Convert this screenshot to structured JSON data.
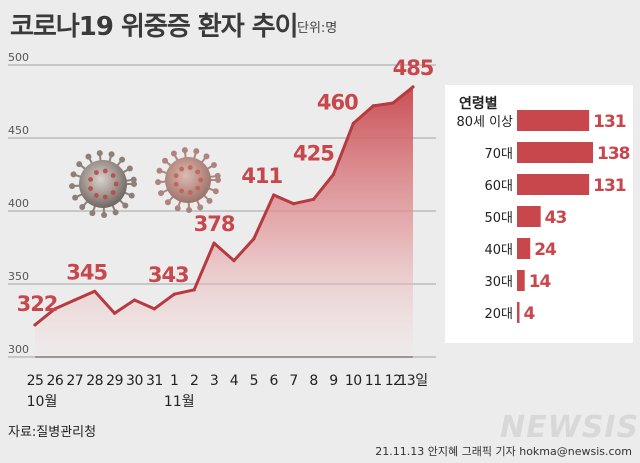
{
  "title": "코로나19 위중증 환자 추이",
  "unit": "단위:명",
  "source": "자료:질병관리청",
  "credit": "21.11.13 안지혜 그래픽 기자 hokma@newsis.com",
  "logo": "NEWSIS",
  "colors": {
    "accent": "#c8474d",
    "accent_dark": "#b63a40",
    "background": "#ececec",
    "fill_top": "#c8474d"
  },
  "chart_data": [
    {
      "type": "area",
      "title": "코로나19 위중증 환자 추이",
      "unit": "단위:명",
      "ylim": [
        300,
        500
      ],
      "yticks": [
        300,
        350,
        400,
        450,
        500
      ],
      "grid": true,
      "x": [
        "25",
        "26",
        "27",
        "28",
        "29",
        "30",
        "31",
        "1",
        "2",
        "3",
        "4",
        "5",
        "6",
        "7",
        "8",
        "9",
        "10",
        "11",
        "12",
        "13"
      ],
      "x_last_suffix": "일",
      "month_labels": [
        {
          "label": "10월",
          "at": "25"
        },
        {
          "label": "11월",
          "at": "1"
        }
      ],
      "values": [
        322,
        333,
        339,
        345,
        330,
        339,
        333,
        343,
        346,
        378,
        366,
        381,
        411,
        405,
        408,
        425,
        460,
        472,
        474,
        485
      ],
      "data_labels": [
        {
          "x": "25",
          "value": 322
        },
        {
          "x": "28",
          "value": 345
        },
        {
          "x": "1",
          "value": 343
        },
        {
          "x": "3",
          "value": 378
        },
        {
          "x": "6",
          "value": 411
        },
        {
          "x": "9",
          "value": 425
        },
        {
          "x": "10",
          "value": 460
        },
        {
          "x": "13",
          "value": 485
        }
      ]
    },
    {
      "type": "bar",
      "orientation": "horizontal",
      "title": "연령별",
      "categories": [
        "80세 이상",
        "70대",
        "60대",
        "50대",
        "40대",
        "30대",
        "20대"
      ],
      "values": [
        131,
        138,
        131,
        43,
        24,
        14,
        4
      ]
    }
  ]
}
